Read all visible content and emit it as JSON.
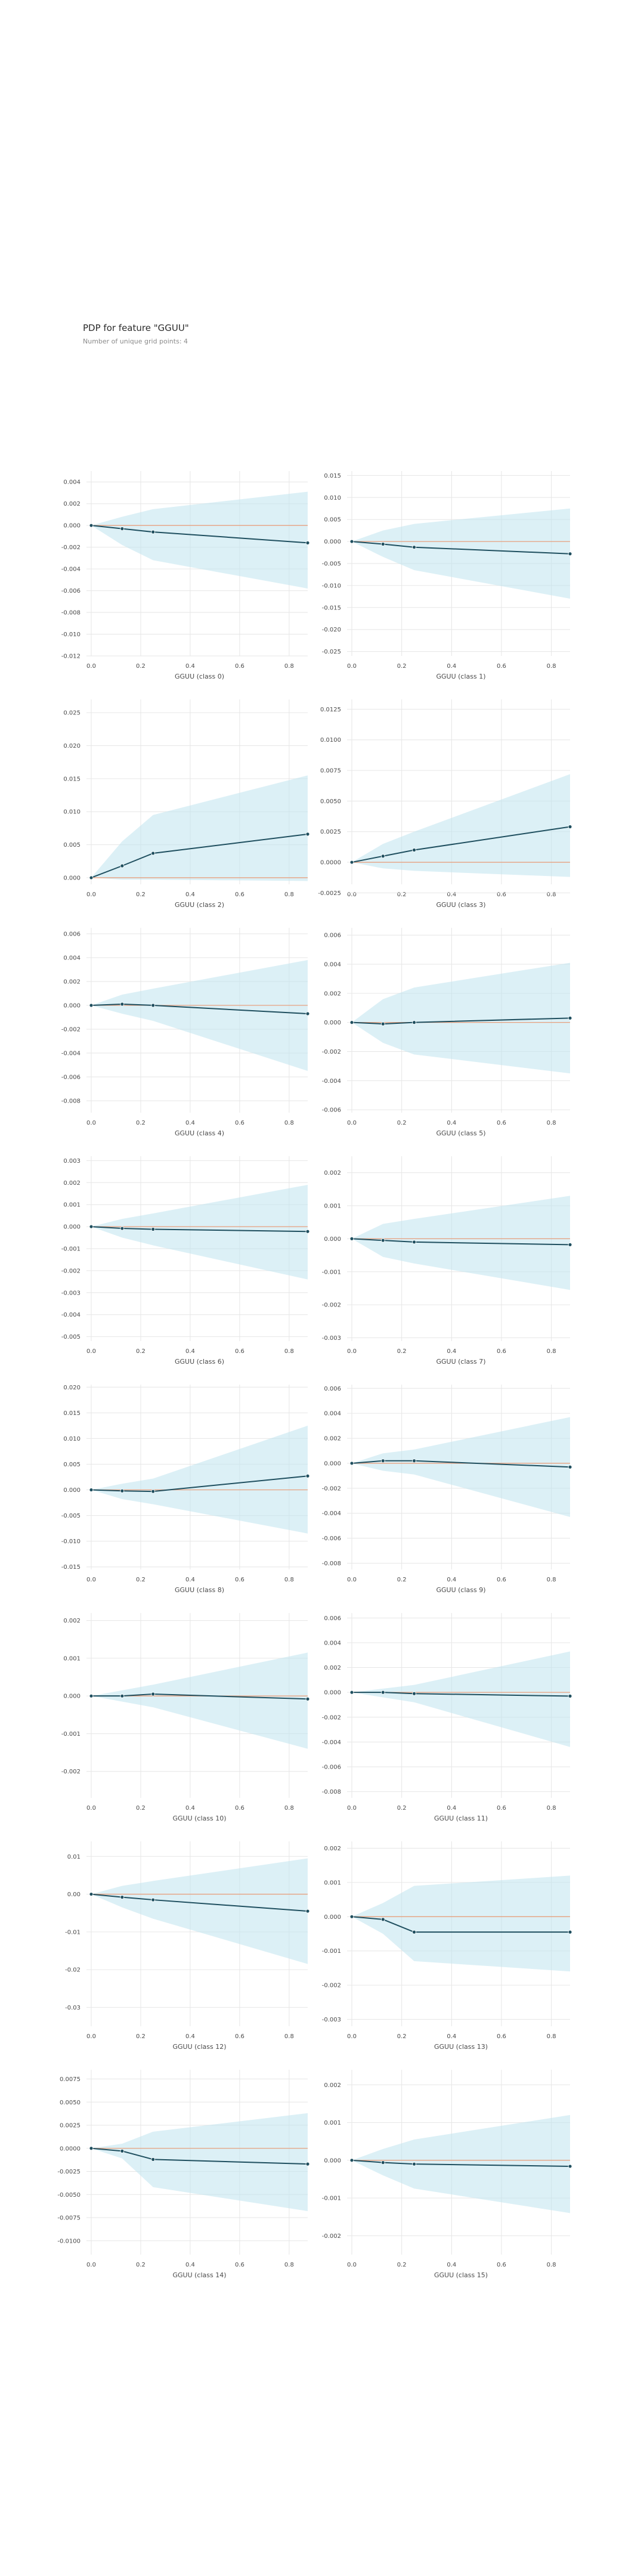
{
  "header": {
    "title": "PDP for feature \"GGUU\"",
    "subtitle": "Number of unique grid points: 4"
  },
  "colors": {
    "band": "#bfe3ef",
    "line": "#1f4f5f",
    "baseline": "#e7a07f",
    "grid": "#e6e6e6",
    "text": "#4a4a4a"
  },
  "chart_data": [
    {
      "type": "line",
      "xlabel": "GGUU (class 0)",
      "x": [
        0,
        0.125,
        0.25,
        0.875
      ],
      "y": [
        0,
        -0.0003,
        -0.0006,
        -0.0016
      ],
      "upper": [
        0,
        0.0008,
        0.0015,
        0.0031
      ],
      "lower": [
        0,
        -0.0018,
        -0.0032,
        -0.0058
      ],
      "ylim": [
        -0.012,
        0.005
      ],
      "yticks": [
        0.004,
        0.002,
        0.0,
        -0.002,
        -0.004,
        -0.006,
        -0.008,
        -0.01,
        -0.012
      ],
      "xticks": [
        0.0,
        0.2,
        0.4,
        0.6,
        0.8
      ],
      "decimals": 3
    },
    {
      "type": "line",
      "xlabel": "GGUU (class 1)",
      "x": [
        0,
        0.125,
        0.25,
        0.875
      ],
      "y": [
        0,
        -0.0006,
        -0.0013,
        -0.0028
      ],
      "upper": [
        0,
        0.0025,
        0.004,
        0.0075
      ],
      "lower": [
        0,
        -0.0035,
        -0.0065,
        -0.013
      ],
      "ylim": [
        -0.026,
        0.016
      ],
      "yticks": [
        0.015,
        0.01,
        0.005,
        0.0,
        -0.005,
        -0.01,
        -0.015,
        -0.02,
        -0.025
      ],
      "xticks": [
        0.0,
        0.2,
        0.4,
        0.6,
        0.8
      ],
      "decimals": 3
    },
    {
      "type": "line",
      "xlabel": "GGUU (class 2)",
      "x": [
        0,
        0.125,
        0.25,
        0.875
      ],
      "y": [
        0,
        0.0018,
        0.0037,
        0.0066
      ],
      "upper": [
        0,
        0.0055,
        0.0095,
        0.0155
      ],
      "lower": [
        0,
        -0.0003,
        -0.0003,
        -0.0005
      ],
      "ylim": [
        -0.001,
        0.027
      ],
      "yticks": [
        0.025,
        0.02,
        0.015,
        0.01,
        0.005,
        0.0
      ],
      "xticks": [
        0.0,
        0.2,
        0.4,
        0.6,
        0.8
      ],
      "decimals": 3
    },
    {
      "type": "line",
      "xlabel": "GGUU (class 3)",
      "x": [
        0,
        0.125,
        0.25,
        0.875
      ],
      "y": [
        0,
        0.0005,
        0.001,
        0.0029
      ],
      "upper": [
        0,
        0.0015,
        0.0025,
        0.0072
      ],
      "lower": [
        0,
        -0.0005,
        -0.0007,
        -0.0012
      ],
      "ylim": [
        -0.0018,
        0.0133
      ],
      "yticks": [
        0.0125,
        0.01,
        0.0075,
        0.005,
        0.0025,
        0.0,
        -0.0025
      ],
      "xticks": [
        0.0,
        0.2,
        0.4,
        0.6,
        0.8
      ],
      "decimals": 4
    },
    {
      "type": "line",
      "xlabel": "GGUU (class 4)",
      "x": [
        0,
        0.125,
        0.25,
        0.875
      ],
      "y": [
        0,
        0.0001,
        0,
        -0.0007
      ],
      "upper": [
        0,
        0.0009,
        0.0014,
        0.0038
      ],
      "lower": [
        0,
        -0.0007,
        -0.0013,
        -0.0055
      ],
      "ylim": [
        -0.009,
        0.0065
      ],
      "yticks": [
        0.006,
        0.004,
        0.002,
        0.0,
        -0.002,
        -0.004,
        -0.006,
        -0.008
      ],
      "xticks": [
        0.0,
        0.2,
        0.4,
        0.6,
        0.8
      ],
      "decimals": 3
    },
    {
      "type": "line",
      "xlabel": "GGUU (class 5)",
      "x": [
        0,
        0.125,
        0.25,
        0.875
      ],
      "y": [
        0,
        -0.0001,
        0,
        0.0003
      ],
      "upper": [
        0,
        0.0016,
        0.0024,
        0.0041
      ],
      "lower": [
        0,
        -0.0014,
        -0.0022,
        -0.0035
      ],
      "ylim": [
        -0.0062,
        0.0065
      ],
      "yticks": [
        0.006,
        0.004,
        0.002,
        0.0,
        -0.002,
        -0.004,
        -0.006
      ],
      "xticks": [
        0.0,
        0.2,
        0.4,
        0.6,
        0.8
      ],
      "decimals": 3
    },
    {
      "type": "line",
      "xlabel": "GGUU (class 6)",
      "x": [
        0,
        0.125,
        0.25,
        0.875
      ],
      "y": [
        0,
        -8e-05,
        -0.00012,
        -0.00022
      ],
      "upper": [
        0,
        0.00035,
        0.0006,
        0.0019
      ],
      "lower": [
        0,
        -0.0005,
        -0.00085,
        -0.0024
      ],
      "ylim": [
        -0.0052,
        0.0032
      ],
      "yticks": [
        0.003,
        0.002,
        0.001,
        0.0,
        -0.001,
        -0.002,
        -0.003,
        -0.004,
        -0.005
      ],
      "xticks": [
        0.0,
        0.2,
        0.4,
        0.6,
        0.8
      ],
      "decimals": 3
    },
    {
      "type": "line",
      "xlabel": "GGUU (class 7)",
      "x": [
        0,
        0.125,
        0.25,
        0.875
      ],
      "y": [
        0,
        -5e-05,
        -0.0001,
        -0.00018
      ],
      "upper": [
        0,
        0.00045,
        0.0006,
        0.0013
      ],
      "lower": [
        0,
        -0.00055,
        -0.00075,
        -0.00155
      ],
      "ylim": [
        -0.0031,
        0.0025
      ],
      "yticks": [
        0.002,
        0.001,
        0.0,
        -0.001,
        -0.002,
        -0.003
      ],
      "xticks": [
        0.0,
        0.2,
        0.4,
        0.6,
        0.8
      ],
      "decimals": 3
    },
    {
      "type": "line",
      "xlabel": "GGUU (class 8)",
      "x": [
        0,
        0.125,
        0.25,
        0.875
      ],
      "y": [
        0,
        -0.0002,
        -0.0003,
        0.0027
      ],
      "upper": [
        0,
        0.0012,
        0.0022,
        0.0125
      ],
      "lower": [
        0,
        -0.0018,
        -0.0028,
        -0.0085
      ],
      "ylim": [
        -0.0155,
        0.0205
      ],
      "yticks": [
        0.02,
        0.015,
        0.01,
        0.005,
        0.0,
        -0.005,
        -0.01,
        -0.015
      ],
      "xticks": [
        0.0,
        0.2,
        0.4,
        0.6,
        0.8
      ],
      "decimals": 3
    },
    {
      "type": "line",
      "xlabel": "GGUU (class 9)",
      "x": [
        0,
        0.125,
        0.25,
        0.875
      ],
      "y": [
        0,
        0.0002,
        0.0002,
        -0.0003
      ],
      "upper": [
        0,
        0.0008,
        0.0011,
        0.0037
      ],
      "lower": [
        0,
        -0.0006,
        -0.0009,
        -0.0043
      ],
      "ylim": [
        -0.0085,
        0.0063
      ],
      "yticks": [
        0.006,
        0.004,
        0.002,
        0.0,
        -0.002,
        -0.004,
        -0.006,
        -0.008
      ],
      "xticks": [
        0.0,
        0.2,
        0.4,
        0.6,
        0.8
      ],
      "decimals": 3
    },
    {
      "type": "line",
      "xlabel": "GGUU (class 10)",
      "x": [
        0,
        0.125,
        0.25,
        0.875
      ],
      "y": [
        0,
        0,
        5e-05,
        -8e-05
      ],
      "upper": [
        0,
        0.00015,
        0.0003,
        0.00115
      ],
      "lower": [
        0,
        -0.00015,
        -0.0003,
        -0.0014
      ],
      "ylim": [
        -0.0027,
        0.0022
      ],
      "yticks": [
        0.002,
        0.001,
        0.0,
        -0.001,
        -0.002
      ],
      "xticks": [
        0.0,
        0.2,
        0.4,
        0.6,
        0.8
      ],
      "decimals": 3
    },
    {
      "type": "line",
      "xlabel": "GGUU (class 11)",
      "x": [
        0,
        0.125,
        0.25,
        0.875
      ],
      "y": [
        0,
        0,
        -0.0001,
        -0.0003
      ],
      "upper": [
        0,
        0.0003,
        0.0006,
        0.0033
      ],
      "lower": [
        0,
        -0.0004,
        -0.0008,
        -0.0044
      ],
      "ylim": [
        -0.0085,
        0.0064
      ],
      "yticks": [
        0.006,
        0.004,
        0.002,
        0.0,
        -0.002,
        -0.004,
        -0.006,
        -0.008
      ],
      "xticks": [
        0.0,
        0.2,
        0.4,
        0.6,
        0.8
      ],
      "decimals": 3
    },
    {
      "type": "line",
      "xlabel": "GGUU (class 12)",
      "x": [
        0,
        0.125,
        0.25,
        0.875
      ],
      "y": [
        0,
        -0.0008,
        -0.0015,
        -0.0045
      ],
      "upper": [
        0,
        0.0022,
        0.0035,
        0.0095
      ],
      "lower": [
        0,
        -0.0035,
        -0.0065,
        -0.0185
      ],
      "ylim": [
        -0.035,
        0.014
      ],
      "yticks": [
        0.01,
        0.0,
        -0.01,
        -0.02,
        -0.03
      ],
      "xticks": [
        0.0,
        0.2,
        0.4,
        0.6,
        0.8
      ],
      "decimals": 2
    },
    {
      "type": "line",
      "xlabel": "GGUU (class 13)",
      "x": [
        0,
        0.125,
        0.25,
        0.875
      ],
      "y": [
        0,
        -8e-05,
        -0.00045,
        -0.00045
      ],
      "upper": [
        0,
        0.0004,
        0.0009,
        0.0012
      ],
      "lower": [
        0,
        -0.0005,
        -0.0013,
        -0.0016
      ],
      "ylim": [
        -0.0032,
        0.0022
      ],
      "yticks": [
        0.002,
        0.001,
        0.0,
        -0.001,
        -0.002,
        -0.003
      ],
      "xticks": [
        0.0,
        0.2,
        0.4,
        0.6,
        0.8
      ],
      "decimals": 3
    },
    {
      "type": "line",
      "xlabel": "GGUU (class 14)",
      "x": [
        0,
        0.125,
        0.25,
        0.875
      ],
      "y": [
        0,
        -0.0003,
        -0.0012,
        -0.0017
      ],
      "upper": [
        0,
        0.0005,
        0.0018,
        0.0038
      ],
      "lower": [
        0,
        -0.0011,
        -0.0042,
        -0.0068
      ],
      "ylim": [
        -0.0115,
        0.0085
      ],
      "yticks": [
        0.0075,
        0.005,
        0.0025,
        0.0,
        -0.0025,
        -0.005,
        -0.0075,
        -0.01
      ],
      "xticks": [
        0.0,
        0.2,
        0.4,
        0.6,
        0.8
      ],
      "decimals": 4
    },
    {
      "type": "line",
      "xlabel": "GGUU (class 15)",
      "x": [
        0,
        0.125,
        0.25,
        0.875
      ],
      "y": [
        0,
        -6e-05,
        -0.0001,
        -0.00016
      ],
      "upper": [
        0,
        0.0003,
        0.00055,
        0.0012
      ],
      "lower": [
        0,
        -0.0004,
        -0.00075,
        -0.0014
      ],
      "ylim": [
        -0.0025,
        0.0024
      ],
      "yticks": [
        0.002,
        0.001,
        0.0,
        -0.001,
        -0.002
      ],
      "xticks": [
        0.0,
        0.2,
        0.4,
        0.6,
        0.8
      ],
      "decimals": 3
    }
  ]
}
